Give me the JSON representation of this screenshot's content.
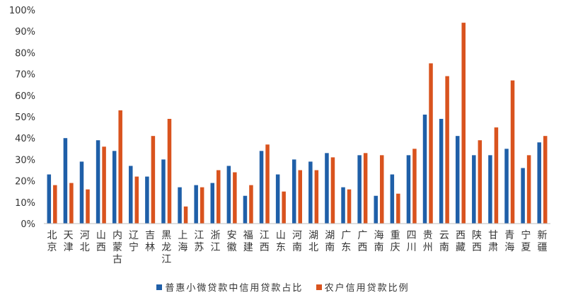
{
  "chart_data": {
    "type": "bar",
    "categories": [
      "北京",
      "天津",
      "河北",
      "山西",
      "内蒙古",
      "辽宁",
      "吉林",
      "黑龙江",
      "上海",
      "江苏",
      "浙江",
      "安徽",
      "福建",
      "江西",
      "山东",
      "河南",
      "湖北",
      "湖南",
      "广东",
      "广西",
      "海南",
      "重庆",
      "四川",
      "贵州",
      "云南",
      "西藏",
      "陕西",
      "甘肃",
      "青海",
      "宁夏",
      "新疆"
    ],
    "series": [
      {
        "name": "普惠小微贷款中信用贷款占比",
        "color": "#1f5fa8",
        "values": [
          23,
          40,
          29,
          39,
          34,
          27,
          22,
          30,
          17,
          18,
          19,
          27,
          13,
          34,
          23,
          30,
          29,
          33,
          17,
          32,
          13,
          23,
          32,
          51,
          49,
          41,
          32,
          32,
          35,
          26,
          38
        ]
      },
      {
        "name": "农户信用贷款比例",
        "color": "#d9531e",
        "values": [
          18,
          19,
          16,
          36,
          53,
          22,
          41,
          49,
          8,
          17,
          25,
          24,
          18,
          37,
          15,
          25,
          25,
          31,
          16,
          33,
          32,
          14,
          35,
          75,
          69,
          94,
          39,
          45,
          67,
          32,
          41
        ]
      }
    ],
    "yticks": [
      "0%",
      "10%",
      "20%",
      "30%",
      "40%",
      "50%",
      "60%",
      "70%",
      "80%",
      "90%",
      "100%"
    ],
    "ylim": [
      0,
      100
    ],
    "xlabel": "",
    "ylabel": "",
    "grid": false,
    "legend_position": "bottom"
  }
}
